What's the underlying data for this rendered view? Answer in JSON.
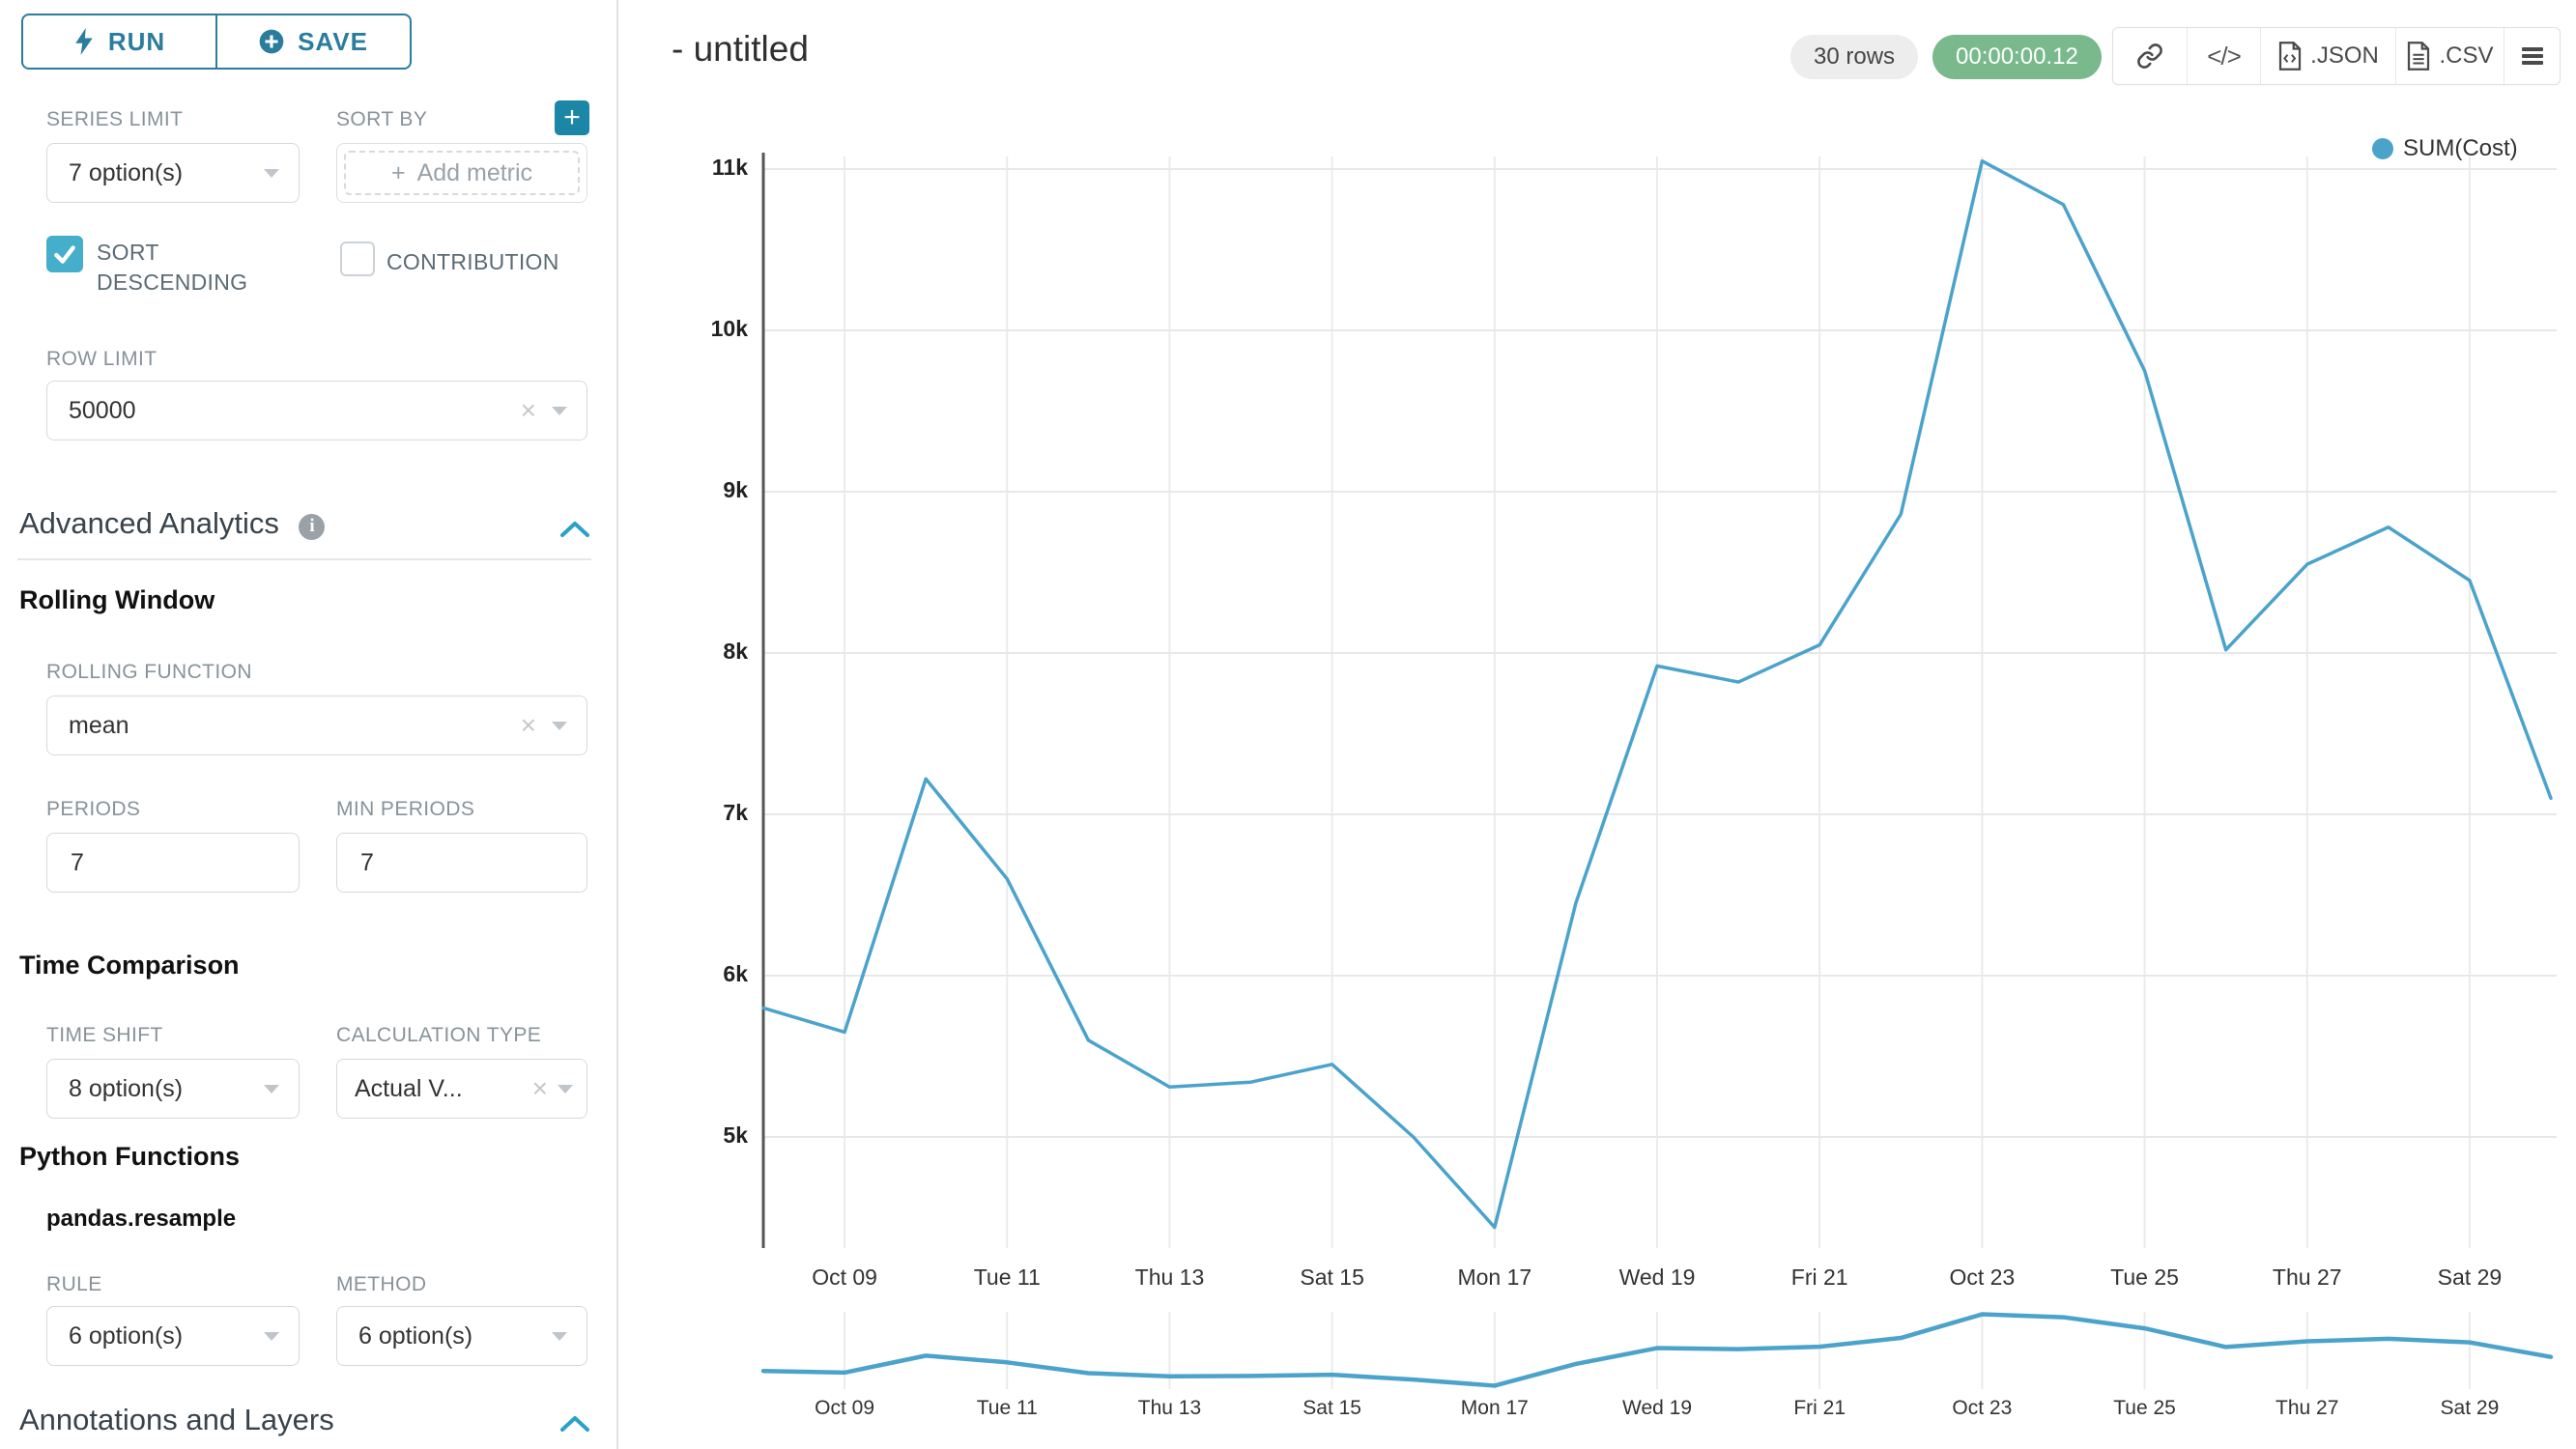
{
  "sidebar": {
    "run_label": "RUN",
    "save_label": "SAVE",
    "series_limit_label": "SERIES LIMIT",
    "series_limit_value": "7 option(s)",
    "sort_by_label": "SORT BY",
    "add_metric_placeholder": "Add metric",
    "sort_descending_label": "SORT DESCENDING",
    "contribution_label": "CONTRIBUTION",
    "row_limit_label": "ROW LIMIT",
    "row_limit_value": "50000",
    "advanced_analytics_title": "Advanced Analytics",
    "rolling_window_title": "Rolling Window",
    "rolling_function_label": "ROLLING FUNCTION",
    "rolling_function_value": "mean",
    "periods_label": "PERIODS",
    "periods_value": "7",
    "min_periods_label": "MIN PERIODS",
    "min_periods_value": "7",
    "time_comparison_title": "Time Comparison",
    "time_shift_label": "TIME SHIFT",
    "time_shift_value": "8 option(s)",
    "calculation_type_label": "CALCULATION TYPE",
    "calculation_type_value": "Actual V...",
    "python_functions_title": "Python Functions",
    "pandas_resample_label": "pandas.resample",
    "rule_label": "RULE",
    "rule_value": "6 option(s)",
    "method_label": "METHOD",
    "method_value": "6 option(s)",
    "annotations_title": "Annotations and Layers"
  },
  "header": {
    "title": "- untitled",
    "rows_badge": "30 rows",
    "timer_badge": "00:00:00.12",
    "json_label": ".JSON",
    "csv_label": ".CSV"
  },
  "legend": {
    "label": "SUM(Cost)"
  },
  "colors": {
    "primary_teal": "#2A7D9C",
    "checkbox_blue": "#45AECB",
    "plus_button_teal": "#1C86A6",
    "timer_green": "#79B98B",
    "line_blue": "#4BA3CB",
    "gridline": "#ebebeb",
    "axis_line": "#555555"
  },
  "chart_data": {
    "type": "line",
    "title": "",
    "xlabel": "",
    "ylabel": "",
    "grid": true,
    "legend_position": "top-right",
    "x": [
      "Oct 08",
      "Oct 09",
      "Oct 10",
      "Oct 11",
      "Oct 12",
      "Oct 13",
      "Oct 14",
      "Oct 15",
      "Oct 16",
      "Oct 17",
      "Oct 18",
      "Oct 19",
      "Oct 20",
      "Oct 21",
      "Oct 22",
      "Oct 23",
      "Oct 24",
      "Oct 25",
      "Oct 26",
      "Oct 27",
      "Oct 28",
      "Oct 29",
      "Oct 30"
    ],
    "series": [
      {
        "name": "SUM(Cost)",
        "values": [
          5800,
          5650,
          7220,
          6600,
          5600,
          5310,
          5340,
          5450,
          5000,
          4440,
          6450,
          7920,
          7820,
          8050,
          8860,
          11050,
          10780,
          9750,
          8020,
          8550,
          8780,
          8450,
          7100
        ]
      }
    ],
    "x_tick_labels": [
      "Oct 09",
      "Tue 11",
      "Thu 13",
      "Sat 15",
      "Mon 17",
      "Wed 19",
      "Fri 21",
      "Oct 23",
      "Tue 25",
      "Thu 27",
      "Sat 29"
    ],
    "x_tick_indices": [
      1,
      3,
      5,
      7,
      9,
      11,
      13,
      15,
      17,
      19,
      21
    ],
    "y_ticks": [
      {
        "label": "5k",
        "value": 5000
      },
      {
        "label": "6k",
        "value": 6000
      },
      {
        "label": "7k",
        "value": 7000
      },
      {
        "label": "8k",
        "value": 8000
      },
      {
        "label": "9k",
        "value": 9000
      },
      {
        "label": "10k",
        "value": 10000
      },
      {
        "label": "11k",
        "value": 11000
      }
    ],
    "ylim": [
      4300,
      11100
    ],
    "has_mini_chart": true
  }
}
